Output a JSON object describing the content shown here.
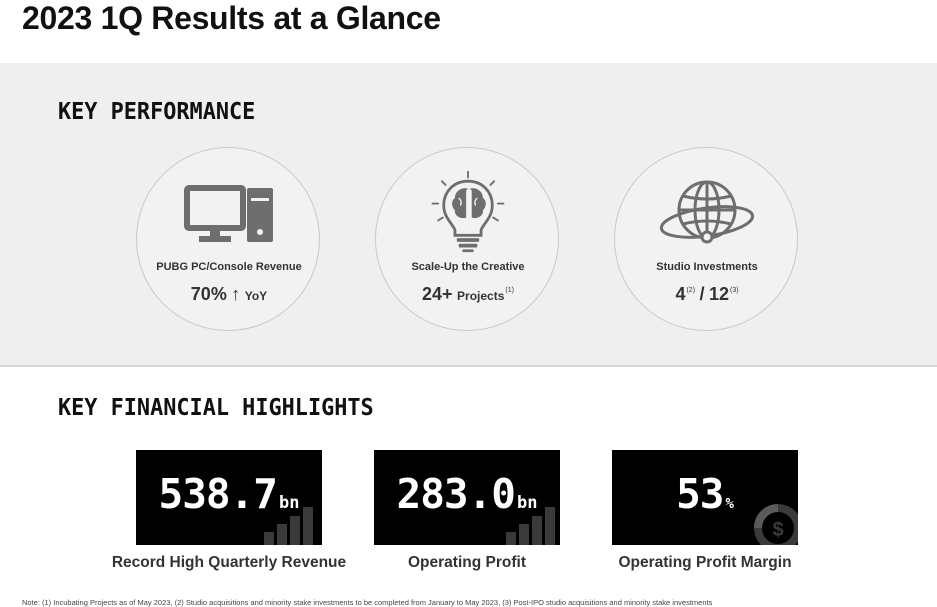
{
  "page": {
    "title": "2023 1Q Results at a Glance"
  },
  "key_performance": {
    "heading": "KEY PERFORMANCE",
    "items": [
      {
        "icon": "computer-icon",
        "label": "PUBG PC/Console Revenue",
        "value": "70%",
        "arrow": "↑",
        "suffix": "YoY"
      },
      {
        "icon": "lightbulb-brain-icon",
        "label": "Scale-Up the Creative",
        "value": "24+",
        "suffix": "Projects",
        "note": "(1)"
      },
      {
        "icon": "globe-orbit-icon",
        "label": "Studio Investments",
        "value_a": "4",
        "note_a": "(2)",
        "separator": "/",
        "value_b": "12",
        "note_b": "(3)"
      }
    ]
  },
  "key_financial": {
    "heading": "KEY FINANCIAL HIGHLIGHTS",
    "items": [
      {
        "value": "538.7",
        "unit": "bn",
        "label": "Record High Quarterly Revenue",
        "deco": "bar-chart-icon"
      },
      {
        "value": "283.0",
        "unit": "bn",
        "label": "Operating Profit",
        "deco": "bar-chart-icon"
      },
      {
        "value": "53",
        "unit": "%",
        "label": "Operating Profit Margin",
        "deco": "dollar-pie-icon"
      }
    ]
  },
  "footnote": "Note: (1) Incubating Projects as of May 2023, (2) Studio acquisitions and minority stake investments to be completed from January to May 2023, (3) Post-IPO studio acquisitions and minority stake investments",
  "colors": {
    "band": "#efefef",
    "card": "#000000",
    "icon": "#6e6e6e",
    "text": "#333333"
  }
}
